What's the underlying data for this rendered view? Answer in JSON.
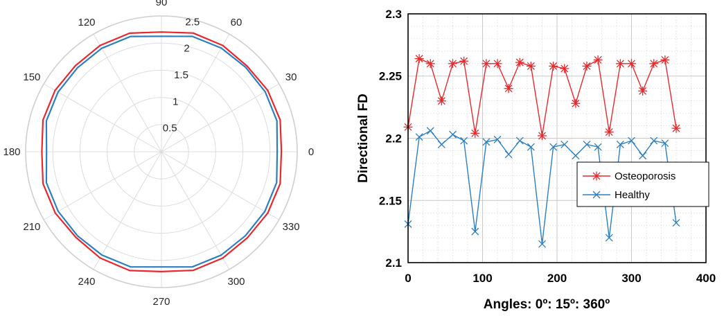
{
  "chart_data": [
    {
      "type": "line",
      "projection": "polar",
      "title": "",
      "theta_ticks": [
        "0",
        "30",
        "60",
        "90",
        "120",
        "150",
        "180",
        "210",
        "240",
        "270",
        "300",
        "330"
      ],
      "r_ticks": [
        "0.5",
        "1",
        "1.5",
        "2",
        "2.5"
      ],
      "rlim": [
        0,
        2.5
      ],
      "grid": true,
      "theta_deg": [
        0,
        15,
        30,
        45,
        60,
        75,
        90,
        105,
        120,
        135,
        150,
        165,
        180,
        195,
        210,
        225,
        240,
        255,
        270,
        285,
        300,
        315,
        330,
        345,
        360
      ],
      "series": [
        {
          "color": "#e8282c",
          "values": [
            2.209,
            2.264,
            2.26,
            2.23,
            2.26,
            2.262,
            2.204,
            2.26,
            2.26,
            2.24,
            2.261,
            2.258,
            2.202,
            2.258,
            2.256,
            2.228,
            2.258,
            2.263,
            2.205,
            2.26,
            2.26,
            2.238,
            2.26,
            2.263,
            2.208
          ]
        },
        {
          "color": "#2b7fc0",
          "values": [
            2.131,
            2.201,
            2.206,
            2.195,
            2.203,
            2.198,
            2.125,
            2.197,
            2.199,
            2.187,
            2.198,
            2.193,
            2.115,
            2.193,
            2.195,
            2.186,
            2.195,
            2.193,
            2.12,
            2.195,
            2.198,
            2.186,
            2.198,
            2.196,
            2.132
          ]
        }
      ]
    },
    {
      "type": "line",
      "title": "",
      "xlabel": "Angles: 0º: 15º: 360º",
      "ylabel": "Directional FD",
      "xlim": [
        0,
        400
      ],
      "ylim": [
        2.1,
        2.3
      ],
      "x_ticks": [
        "0",
        "100",
        "200",
        "300",
        "400"
      ],
      "y_ticks": [
        "2.1",
        "2.15",
        "2.2",
        "2.25",
        "2.3"
      ],
      "grid": true,
      "grid_minor": true,
      "legend_position": "right",
      "x": [
        0,
        15,
        30,
        45,
        60,
        75,
        90,
        105,
        120,
        135,
        150,
        165,
        180,
        195,
        210,
        225,
        240,
        255,
        270,
        285,
        300,
        315,
        330,
        345,
        360
      ],
      "series": [
        {
          "name": "Osteoporosis",
          "color": "#e8282c",
          "marker": "asterisk",
          "values": [
            2.209,
            2.264,
            2.26,
            2.23,
            2.26,
            2.262,
            2.204,
            2.26,
            2.26,
            2.24,
            2.261,
            2.258,
            2.202,
            2.258,
            2.256,
            2.228,
            2.258,
            2.263,
            2.205,
            2.26,
            2.26,
            2.238,
            2.26,
            2.263,
            2.208
          ]
        },
        {
          "name": "Healthy",
          "color": "#2b7fc0",
          "marker": "x",
          "values": [
            2.131,
            2.201,
            2.206,
            2.195,
            2.203,
            2.198,
            2.125,
            2.197,
            2.199,
            2.187,
            2.198,
            2.193,
            2.115,
            2.193,
            2.195,
            2.186,
            2.195,
            2.193,
            2.12,
            2.195,
            2.198,
            2.186,
            2.198,
            2.196,
            2.132
          ]
        }
      ]
    }
  ]
}
